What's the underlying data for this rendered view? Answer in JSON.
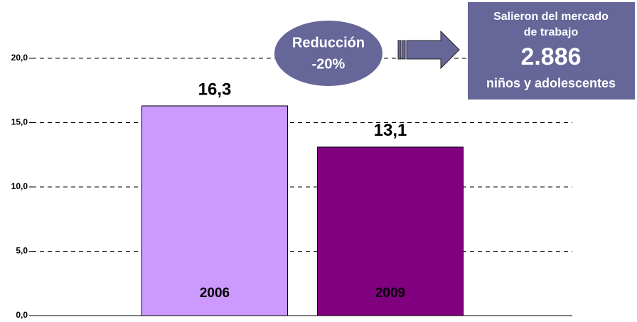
{
  "chart_data": {
    "type": "bar",
    "categories": [
      "2006",
      "2009"
    ],
    "values": [
      16.3,
      13.1
    ],
    "value_labels": [
      "16,3",
      "13,1"
    ],
    "colors": [
      "#cc99ff",
      "#800080"
    ],
    "ylim": [
      0,
      20
    ],
    "yticks": [
      {
        "value": 0,
        "label": "0,0"
      },
      {
        "value": 5,
        "label": "5,0"
      },
      {
        "value": 10,
        "label": "10,0"
      },
      {
        "value": 15,
        "label": "15,0"
      },
      {
        "value": 20,
        "label": "20,0"
      }
    ],
    "grid": true,
    "annotations": {
      "reduction": [
        "Reducción",
        "-20%"
      ],
      "summary": [
        "Salieron del mercado",
        "de trabajo",
        "2.886",
        "niños y adolescentes"
      ]
    }
  }
}
